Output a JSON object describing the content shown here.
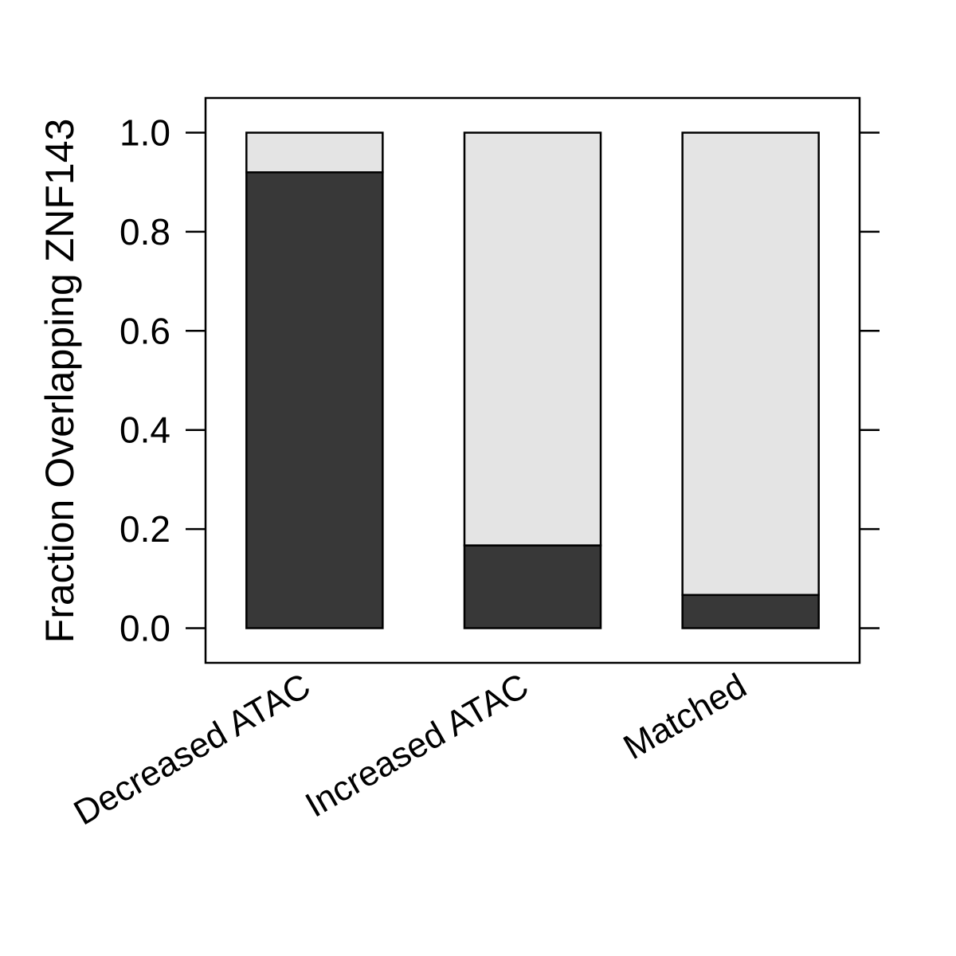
{
  "chart_data": {
    "type": "bar",
    "stacked": true,
    "categories": [
      "Decreased ATAC",
      "Increased ATAC",
      "Matched"
    ],
    "series": [
      {
        "values": [
          0.92,
          0.167,
          0.067
        ],
        "color": "#383838"
      },
      {
        "values": [
          0.08,
          0.833,
          0.933
        ],
        "color": "#e4e4e4"
      }
    ],
    "ylabel": "Fraction Overlapping ZNF143",
    "xlabel": "",
    "title": "",
    "ylim": [
      -0.07,
      1.07
    ],
    "yticks": [
      0.0,
      0.2,
      0.4,
      0.6,
      0.8,
      1.0
    ],
    "ytick_labels": [
      "0.0",
      "0.2",
      "0.4",
      "0.6",
      "0.8",
      "1.0"
    ],
    "grid": false,
    "legend": "none"
  }
}
